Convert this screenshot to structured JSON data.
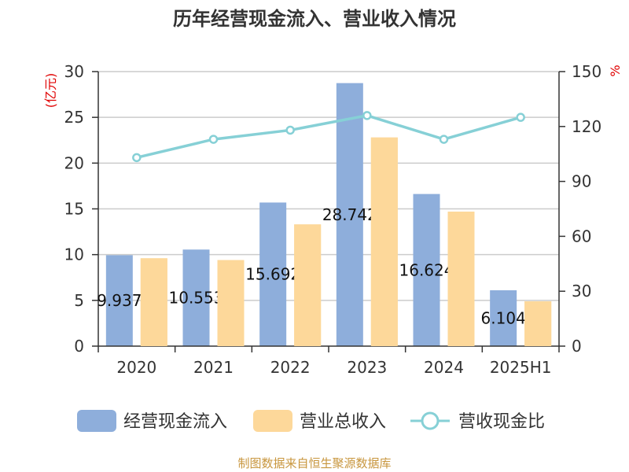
{
  "title": "历年经营现金流入、营业收入情况",
  "footer": "制图数据来自恒生聚源数据库",
  "colors": {
    "cash_inflow": "#8eaedb",
    "revenue": "#fdd89a",
    "ratio": "#86d0d6",
    "grid": "#cccccc",
    "unit": "#e00000"
  },
  "chart_data": {
    "type": "bar",
    "categories": [
      "2020",
      "2021",
      "2022",
      "2023",
      "2024",
      "2025H1"
    ],
    "left_unit": "(亿元)",
    "right_unit": "%",
    "left_ticks": [
      "0",
      "5",
      "10",
      "15",
      "20",
      "25",
      "30"
    ],
    "right_ticks": [
      "0",
      "30",
      "60",
      "90",
      "120",
      "150"
    ],
    "ylim_left": [
      0,
      30
    ],
    "ylim_right": [
      0,
      150
    ],
    "grid": true,
    "legend_position": "bottom",
    "series": [
      {
        "name": "经营现金流入",
        "type": "bar",
        "axis": "left",
        "values": [
          9.937,
          10.553,
          15.692,
          28.742,
          16.624,
          6.104
        ],
        "labels": [
          "9.937",
          "10.553",
          "15.692",
          "28.742",
          "16.624",
          "6.104"
        ]
      },
      {
        "name": "营业总收入",
        "type": "bar",
        "axis": "left",
        "values": [
          9.6,
          9.4,
          13.3,
          22.8,
          14.7,
          4.9
        ]
      },
      {
        "name": "营收现金比",
        "type": "line",
        "axis": "right",
        "values": [
          103,
          113,
          118,
          126,
          113,
          125
        ]
      }
    ]
  }
}
